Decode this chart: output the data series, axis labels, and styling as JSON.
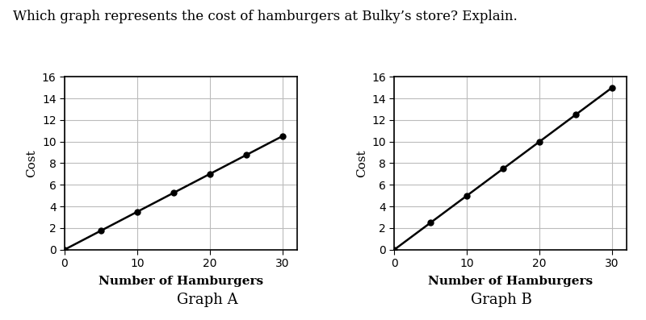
{
  "title": "Which graph represents the cost of hamburgers at Bulky’s store? Explain.",
  "graph_a_label": "Graph A",
  "graph_b_label": "Graph B",
  "xlabel": "Number of Hamburgers",
  "ylabel": "Cost",
  "graph_a_x": [
    0,
    5,
    10,
    15,
    20,
    25,
    30
  ],
  "graph_a_y": [
    0,
    1.75,
    3.5,
    5.25,
    7.0,
    8.75,
    10.5
  ],
  "graph_b_x": [
    0,
    5,
    10,
    15,
    20,
    25,
    30
  ],
  "graph_b_y": [
    0,
    2.5,
    5.0,
    7.5,
    10.0,
    12.5,
    15.0
  ],
  "xlim": [
    0,
    32
  ],
  "ylim": [
    0,
    16
  ],
  "xticks": [
    0,
    10,
    20,
    30
  ],
  "yticks": [
    0,
    2,
    4,
    6,
    8,
    10,
    12,
    14,
    16
  ],
  "line_color": "#000000",
  "marker": "o",
  "marker_size": 5,
  "marker_facecolor": "#000000",
  "grid_color": "#bbbbbb",
  "background_color": "#ffffff",
  "title_fontsize": 12,
  "label_fontsize": 11,
  "tick_fontsize": 10,
  "graph_label_fontsize": 13,
  "graph_label_color": "#000000"
}
